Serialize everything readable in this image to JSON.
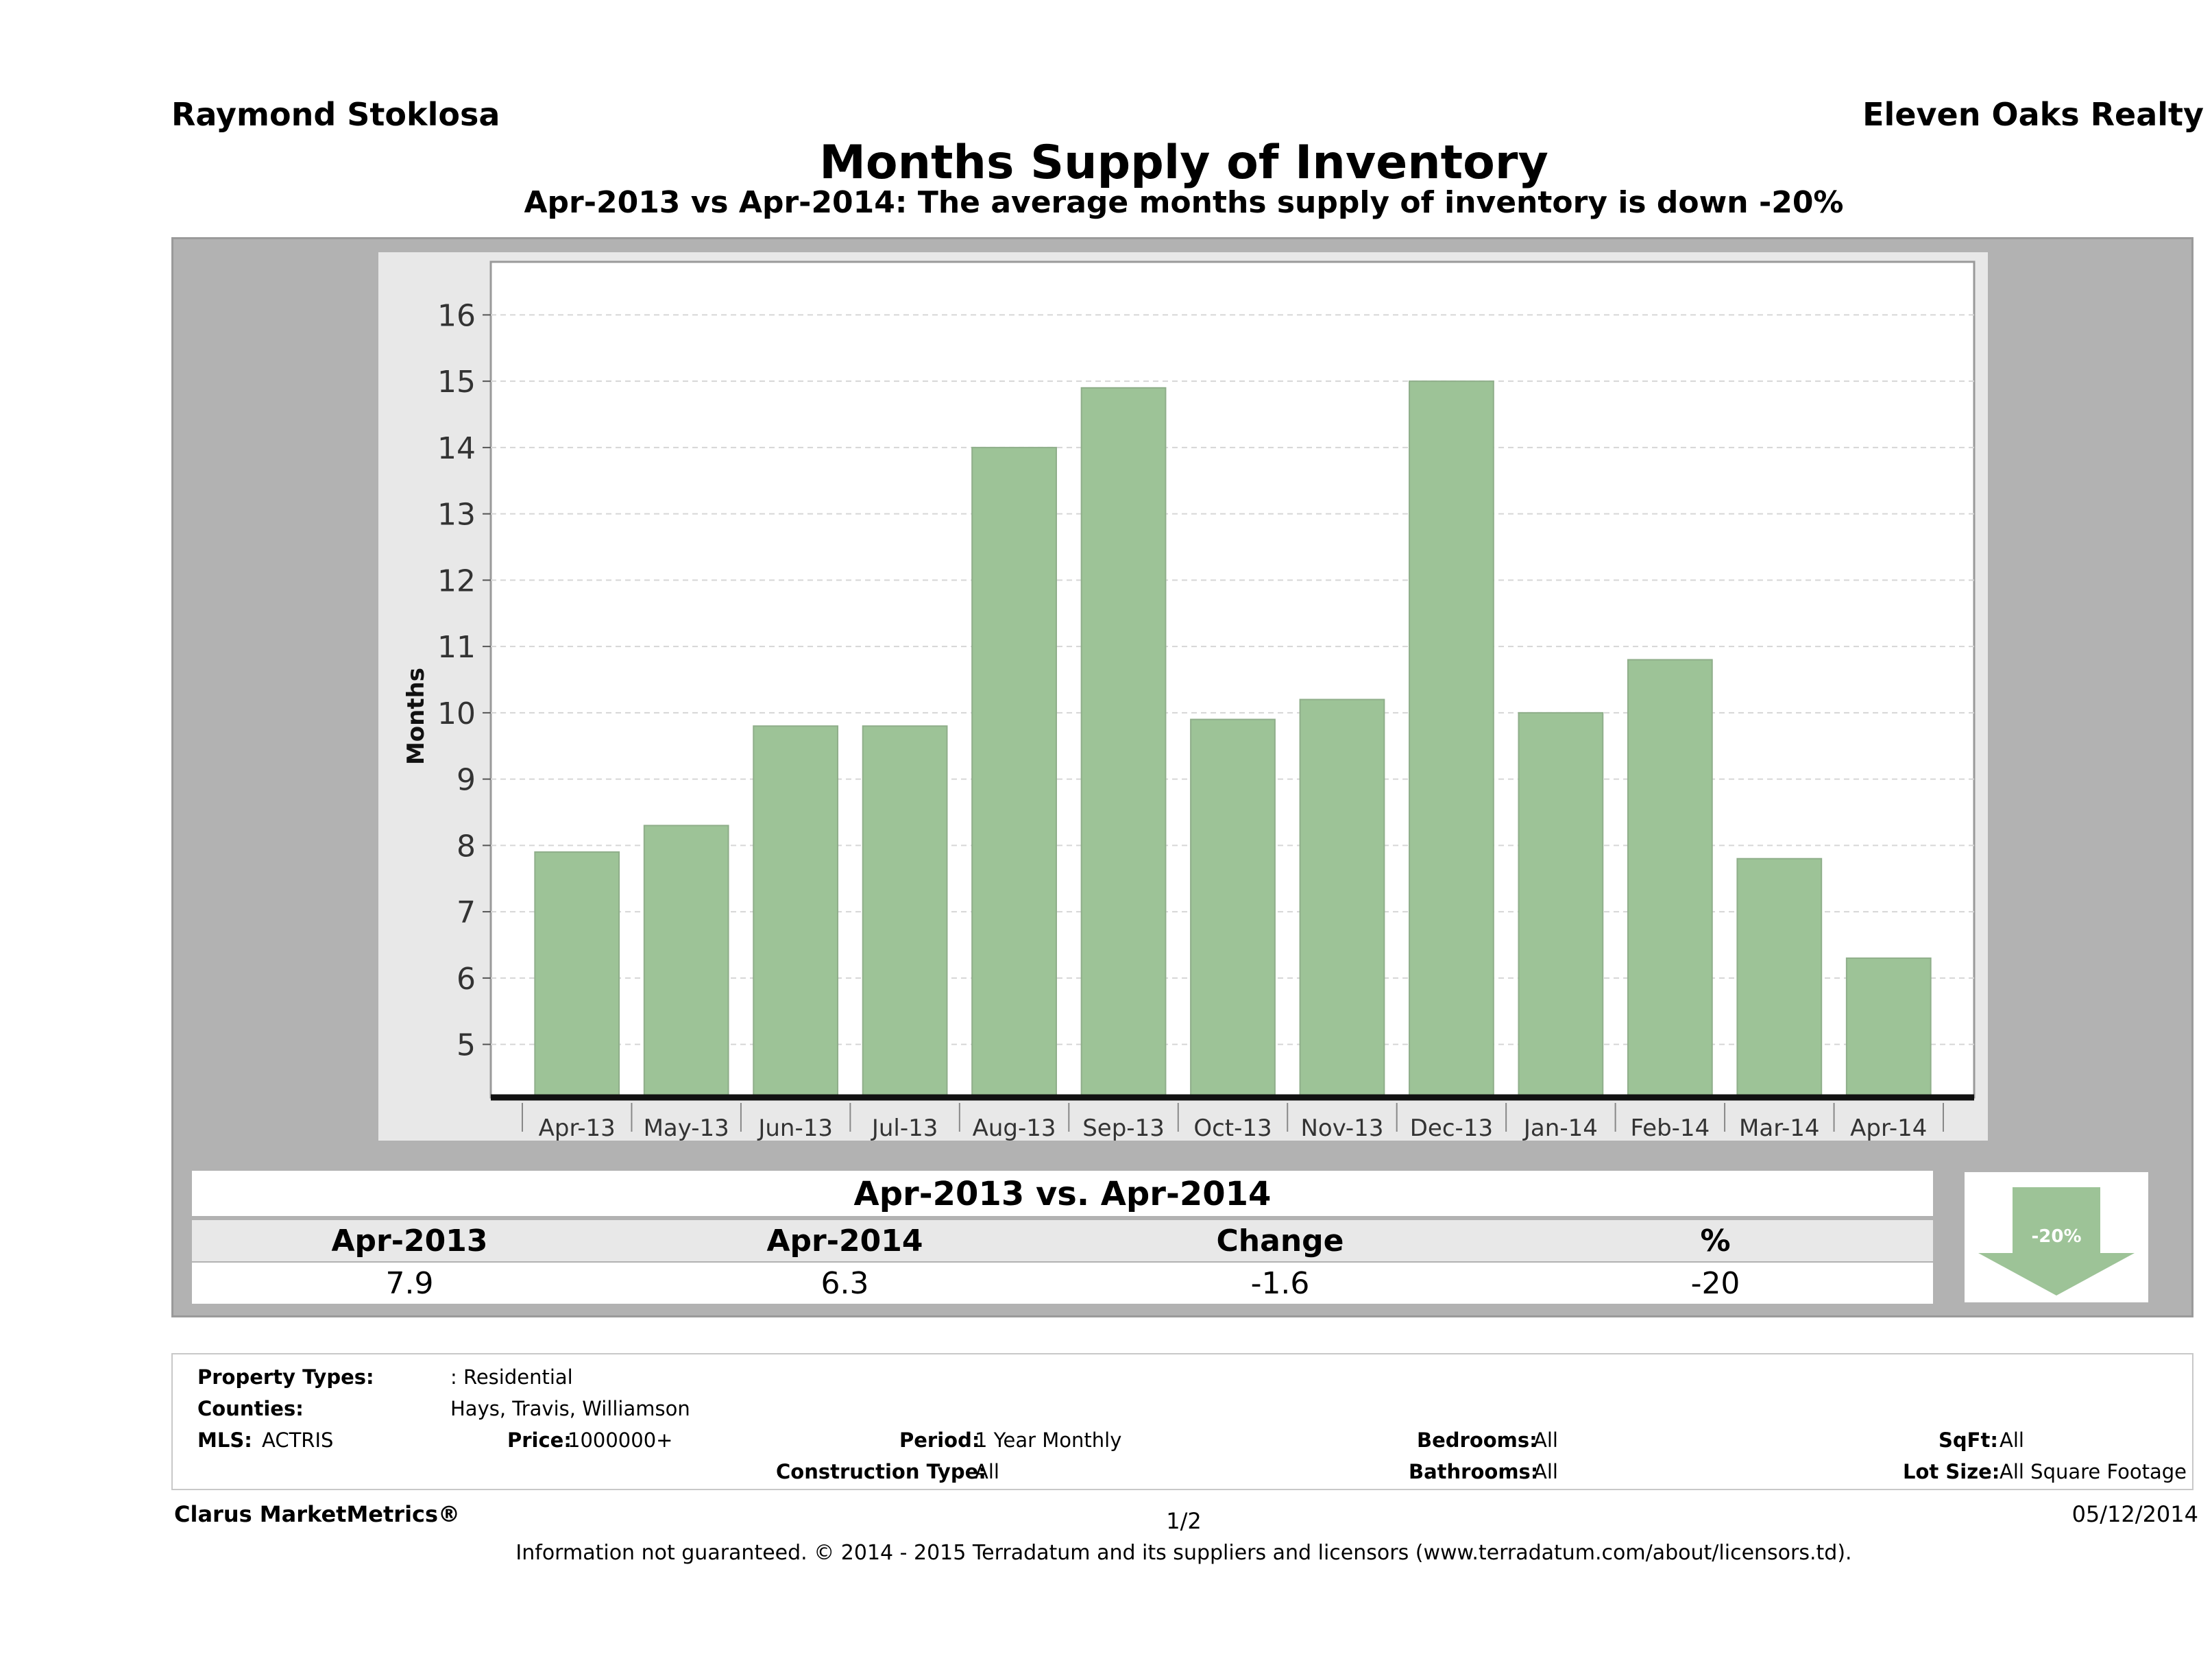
{
  "header": {
    "agent": "Raymond Stoklosa",
    "company": "Eleven Oaks Realty",
    "title": "Months Supply of Inventory",
    "subtitle": "Apr-2013 vs Apr-2014: The average months supply of inventory is down -20%"
  },
  "chart_data": {
    "type": "bar",
    "categories": [
      "Apr-13",
      "May-13",
      "Jun-13",
      "Jul-13",
      "Aug-13",
      "Sep-13",
      "Oct-13",
      "Nov-13",
      "Dec-13",
      "Jan-14",
      "Feb-14",
      "Mar-14",
      "Apr-14"
    ],
    "values": [
      7.9,
      8.3,
      9.8,
      9.8,
      14.0,
      14.9,
      9.9,
      10.2,
      15.0,
      10.0,
      10.8,
      7.8,
      6.3
    ],
    "ylabel": "Months",
    "yticks": [
      5,
      6,
      7,
      8,
      9,
      10,
      11,
      12,
      13,
      14,
      15,
      16
    ],
    "ylim": [
      4.2,
      16.8
    ],
    "grid": true,
    "bar_color": "#9dc397"
  },
  "summary": {
    "title": "Apr-2013 vs. Apr-2014",
    "headers": [
      "Apr-2013",
      "Apr-2014",
      "Change",
      "%"
    ],
    "values": [
      "7.9",
      "6.3",
      "-1.6",
      "-20"
    ],
    "badge": "-20%",
    "direction": "down"
  },
  "info": {
    "property_types_label": "Property Types:",
    "property_types_value": ": Residential",
    "counties_label": "Counties:",
    "counties_value": "Hays, Travis, Williamson",
    "mls_label": "MLS:",
    "mls_value": "ACTRIS",
    "price_label": "Price:",
    "price_value": "1000000+",
    "period_label": "Period:",
    "period_value": "1 Year Monthly",
    "construction_label": "Construction Type:",
    "construction_value": "All",
    "bedrooms_label": "Bedrooms:",
    "bedrooms_value": "All",
    "bathrooms_label": "Bathrooms:",
    "bathrooms_value": "All",
    "sqft_label": "SqFt:",
    "sqft_value": "All",
    "lot_label": "Lot Size:",
    "lot_value": "All Square Footage"
  },
  "footer": {
    "brand": "Clarus MarketMetrics®",
    "page": "1/2",
    "date": "05/12/2014",
    "disclaimer": "Information not guaranteed. © 2014 - 2015 Terradatum and its suppliers and licensors (www.terradatum.com/about/licensors.td)."
  }
}
